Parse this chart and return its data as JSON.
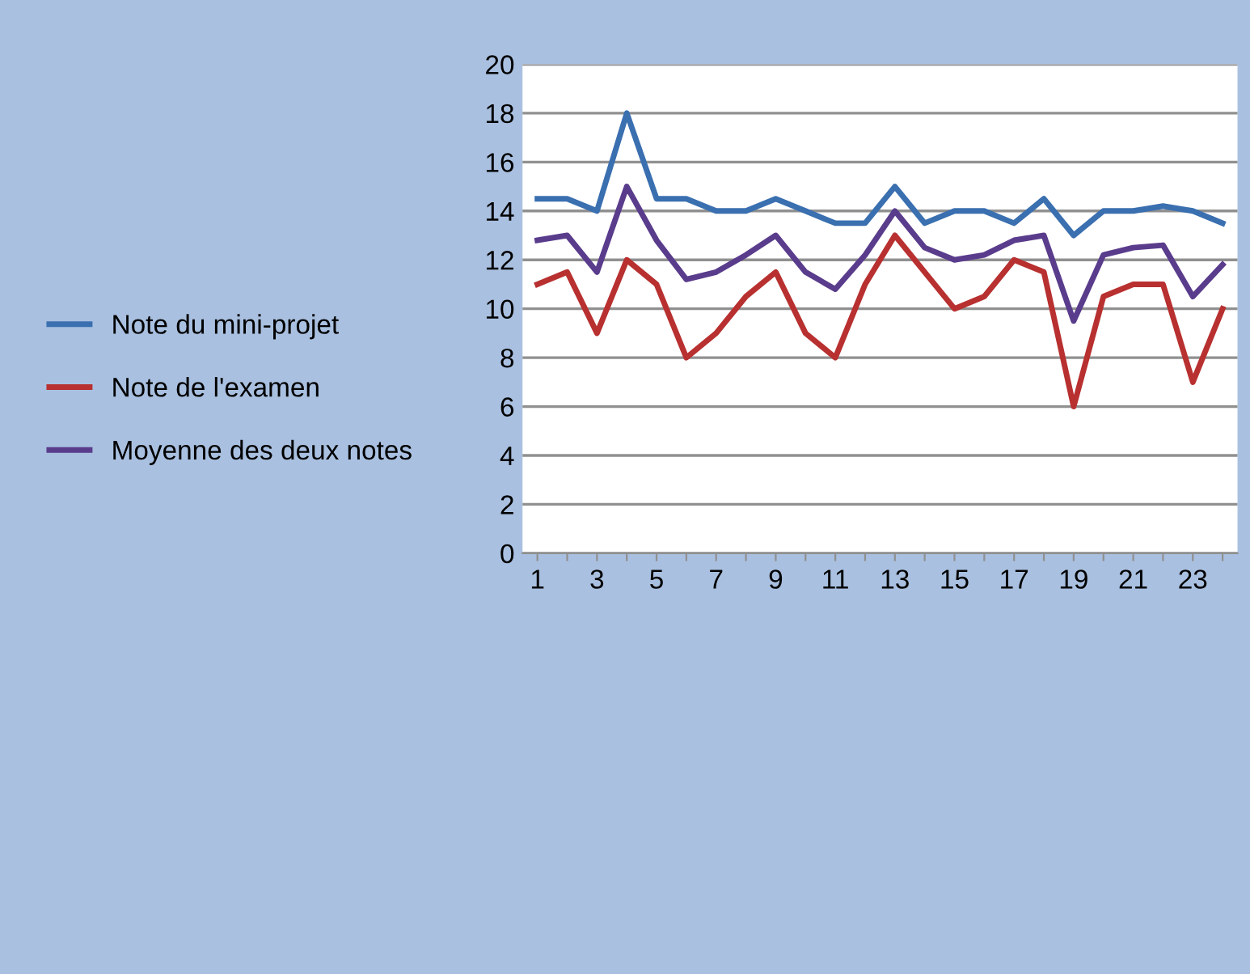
{
  "chart_data": {
    "type": "line",
    "categories": [
      "1",
      null,
      "3",
      null,
      "5",
      null,
      "7",
      null,
      "9",
      null,
      "11",
      null,
      "13",
      null,
      "15",
      null,
      "17",
      null,
      "19",
      null,
      "21",
      null,
      "23",
      null
    ],
    "series": [
      {
        "name": "Note du mini-projet",
        "color": "#3a6fb0",
        "values": [
          14.5,
          14.5,
          14,
          18,
          14.5,
          14.5,
          14,
          14,
          14.5,
          14,
          13.5,
          13.5,
          15,
          13.5,
          14,
          14,
          13.5,
          14.5,
          13,
          14,
          14,
          14.2,
          14,
          13.5
        ]
      },
      {
        "name": "Note de l'examen",
        "color": "#b83030",
        "values": [
          11,
          11.5,
          9,
          12,
          11,
          8,
          9,
          10.5,
          11.5,
          9,
          8,
          11,
          13,
          11.5,
          10,
          10.5,
          12,
          11.5,
          6,
          10.5,
          11,
          11,
          7,
          10
        ]
      },
      {
        "name": "Moyenne des deux notes",
        "color": "#5a3c8c",
        "values": [
          12.8,
          13,
          11.5,
          15,
          12.8,
          11.2,
          11.5,
          12.2,
          13,
          11.5,
          10.8,
          12.2,
          14,
          12.5,
          12,
          12.2,
          12.8,
          13,
          9.5,
          12.2,
          12.5,
          12.6,
          10.5,
          11.8
        ]
      }
    ],
    "ylim": [
      0,
      20
    ],
    "yticks": [
      0,
      2,
      4,
      6,
      8,
      10,
      12,
      14,
      16,
      18,
      20
    ],
    "grid": "y",
    "legend": "left",
    "marker": "none",
    "line_style": "solid"
  }
}
